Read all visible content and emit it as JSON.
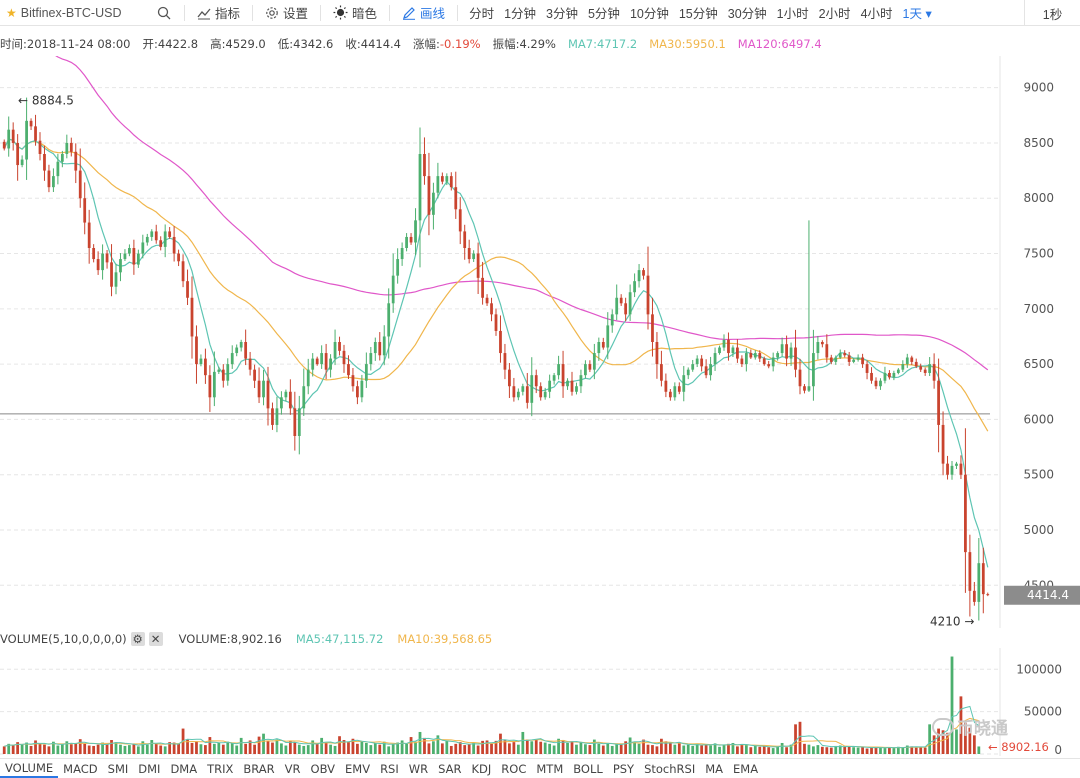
{
  "toolbar": {
    "symbol": "Bitfinex-BTC-USD",
    "indicator_label": "指标",
    "settings_label": "设置",
    "theme_label": "暗色",
    "draw_label": "画线",
    "periods": [
      "分时",
      "1分钟",
      "3分钟",
      "5分钟",
      "10分钟",
      "15分钟",
      "30分钟",
      "1小时",
      "2小时",
      "4小时",
      "1天 ▾"
    ],
    "active_period": "1天 ▾",
    "refresh_label": "1秒"
  },
  "info": {
    "time": "时间:2018-11-24 08:00",
    "open": "开:4422.8",
    "high": "高:4529.0",
    "low": "低:4342.6",
    "close": "收:4414.4",
    "change": "涨幅:",
    "change_value": "-0.19%",
    "amplitude": "振幅:4.29%",
    "ma7": "MA7:4717.2",
    "ma30": "MA30:5950.1",
    "ma120": "MA120:6497.4"
  },
  "volume_info": {
    "title": "VOLUME(5,10,0,0,0,0)",
    "value": "VOLUME:8,902.16",
    "ma5": "MA5:47,115.72",
    "ma10": "MA10:39,568.65"
  },
  "price_axis": {
    "ticks": [
      "9000",
      "8500",
      "8000",
      "7500",
      "7000",
      "6500",
      "6000",
      "5500",
      "5000",
      "4500"
    ],
    "current_price": "4414.4",
    "high_marker": "← 8884.5",
    "low_marker": "4210 →"
  },
  "volume_axis": {
    "ticks": [
      "100000",
      "50000",
      "0"
    ],
    "current_volume": "← 8902.16"
  },
  "indicators": [
    "VOLUME",
    "MACD",
    "SMI",
    "DMI",
    "DMA",
    "TRIX",
    "BRAR",
    "VR",
    "OBV",
    "EMV",
    "RSI",
    "WR",
    "SAR",
    "KDJ",
    "ROC",
    "MTM",
    "BOLL",
    "PSY",
    "StochRSI",
    "MA",
    "EMA"
  ],
  "active_indicator": "VOLUME",
  "watermark": "币晓通",
  "colors": {
    "up": "#4caf6e",
    "down": "#c9432e",
    "ma7": "#5ec5b3",
    "ma30": "#f0b64c",
    "ma120": "#e057c9",
    "accent": "#2b78e4"
  },
  "chart_data": {
    "type": "candlestick",
    "price_ylim": [
      4150,
      9250
    ],
    "volume_ylim": [
      0,
      118000
    ],
    "closes": [
      8450,
      8620,
      8500,
      8300,
      8350,
      8700,
      8650,
      8520,
      8400,
      8250,
      8100,
      8200,
      8330,
      8400,
      8500,
      8420,
      8250,
      8000,
      7780,
      7550,
      7450,
      7350,
      7500,
      7420,
      7200,
      7330,
      7450,
      7500,
      7550,
      7400,
      7500,
      7600,
      7650,
      7700,
      7620,
      7560,
      7700,
      7650,
      7500,
      7430,
      7250,
      7100,
      6750,
      6500,
      6550,
      6400,
      6200,
      6430,
      6450,
      6350,
      6500,
      6600,
      6650,
      6700,
      6550,
      6450,
      6350,
      6200,
      6350,
      6100,
      5950,
      6100,
      6200,
      6250,
      6100,
      5850,
      6100,
      6300,
      6450,
      6550,
      6500,
      6600,
      6450,
      6550,
      6700,
      6620,
      6500,
      6400,
      6300,
      6200,
      6350,
      6500,
      6600,
      6700,
      6580,
      6750,
      7050,
      7300,
      7450,
      7550,
      7650,
      7600,
      7800,
      8400,
      8200,
      7850,
      8050,
      8200,
      8150,
      8200,
      8100,
      7900,
      7700,
      7550,
      7450,
      7500,
      7280,
      7100,
      7050,
      6950,
      6800,
      6600,
      6450,
      6300,
      6200,
      6250,
      6300,
      6150,
      6400,
      6300,
      6200,
      6250,
      6350,
      6400,
      6500,
      6300,
      6350,
      6250,
      6300,
      6400,
      6500,
      6450,
      6600,
      6700,
      6650,
      6850,
      6950,
      7100,
      7050,
      6950,
      7150,
      7250,
      7350,
      7300,
      6950,
      6700,
      6500,
      6350,
      6250,
      6200,
      6300,
      6250,
      6400,
      6450,
      6500,
      6550,
      6480,
      6400,
      6500,
      6600,
      6650,
      6720,
      6600,
      6650,
      6550,
      6500,
      6600,
      6560,
      6600,
      6550,
      6500,
      6480,
      6560,
      6600,
      6680,
      6550,
      6650,
      6450,
      6300,
      6260,
      6300,
      6600,
      6700,
      6680,
      6560,
      6520,
      6560,
      6600,
      6580,
      6520,
      6540,
      6560,
      6500,
      6420,
      6350,
      6300,
      6350,
      6420,
      6380,
      6420,
      6450,
      6500,
      6560,
      6520,
      6480,
      6450,
      6420,
      6500,
      6350,
      5950,
      5600,
      5500,
      5580,
      5600,
      5500,
      4800,
      4450,
      4350,
      4700,
      4420,
      4414
    ],
    "volumes": [
      9000,
      12000,
      10500,
      14000,
      11000,
      13500,
      9500,
      16000,
      12500,
      11000,
      9000,
      14500,
      10000,
      12000,
      15000,
      11500,
      13000,
      17500,
      12000,
      10000,
      9500,
      11000,
      13500,
      12000,
      16500,
      14000,
      11000,
      9500,
      10500,
      12000,
      9000,
      15000,
      11000,
      16500,
      12500,
      10000,
      9000,
      14000,
      13500,
      12000,
      30000,
      17000,
      13000,
      15000,
      11500,
      10500,
      20000,
      12000,
      13000,
      11000,
      14500,
      12500,
      10000,
      19000,
      12000,
      16000,
      11000,
      20500,
      24000,
      15000,
      13500,
      17000,
      12500,
      10000,
      15500,
      14000,
      11000,
      9500,
      10500,
      16000,
      12000,
      19000,
      13000,
      11000,
      9500,
      21000,
      16500,
      14000,
      18000,
      12000,
      15000,
      13000,
      10500,
      12500,
      11000,
      14500,
      9000,
      11500,
      13500,
      16000,
      12000,
      20000,
      14500,
      26000,
      19000,
      12500,
      15000,
      22000,
      12500,
      15500,
      9500,
      12000,
      14000,
      10500,
      11500,
      13000,
      10000,
      15500,
      16000,
      12000,
      15500,
      24000,
      16000,
      12500,
      14000,
      11000,
      26000,
      17000,
      15000,
      17500,
      14500,
      13500,
      12000,
      10000,
      18000,
      16500,
      13000,
      15000,
      11000,
      14000,
      11500,
      10500,
      17000,
      12000,
      10000,
      13000,
      9500,
      12500,
      11000,
      15000,
      19500,
      14500,
      12000,
      17000,
      11000,
      10500,
      9000,
      18000,
      15000,
      12500,
      11000,
      12500,
      10000,
      11000,
      9500,
      12500,
      10000,
      11500,
      10000,
      12500,
      8500,
      11000,
      12000,
      13000,
      9000,
      11500,
      10500,
      8000,
      9500,
      8500,
      9000,
      8000,
      7000,
      9500,
      13000,
      8000,
      11000,
      35000,
      38000,
      12000,
      11000,
      9000,
      10500,
      8500,
      8000,
      7500,
      9500,
      10000,
      8500,
      9000,
      8000,
      7500,
      8500,
      6500,
      7500,
      8000,
      7500,
      7000,
      8000,
      7000,
      8500,
      7500,
      10000,
      9000,
      7500,
      8000,
      7500,
      35000,
      22000,
      30000,
      28000,
      25000,
      115000,
      29000,
      68000,
      37000,
      31000,
      22000,
      8902
    ],
    "ma7": [],
    "ma30": [],
    "ma120": [],
    "reference_price": 6050,
    "volume_spike_index": 180,
    "volume_spike_high": 7800
  }
}
